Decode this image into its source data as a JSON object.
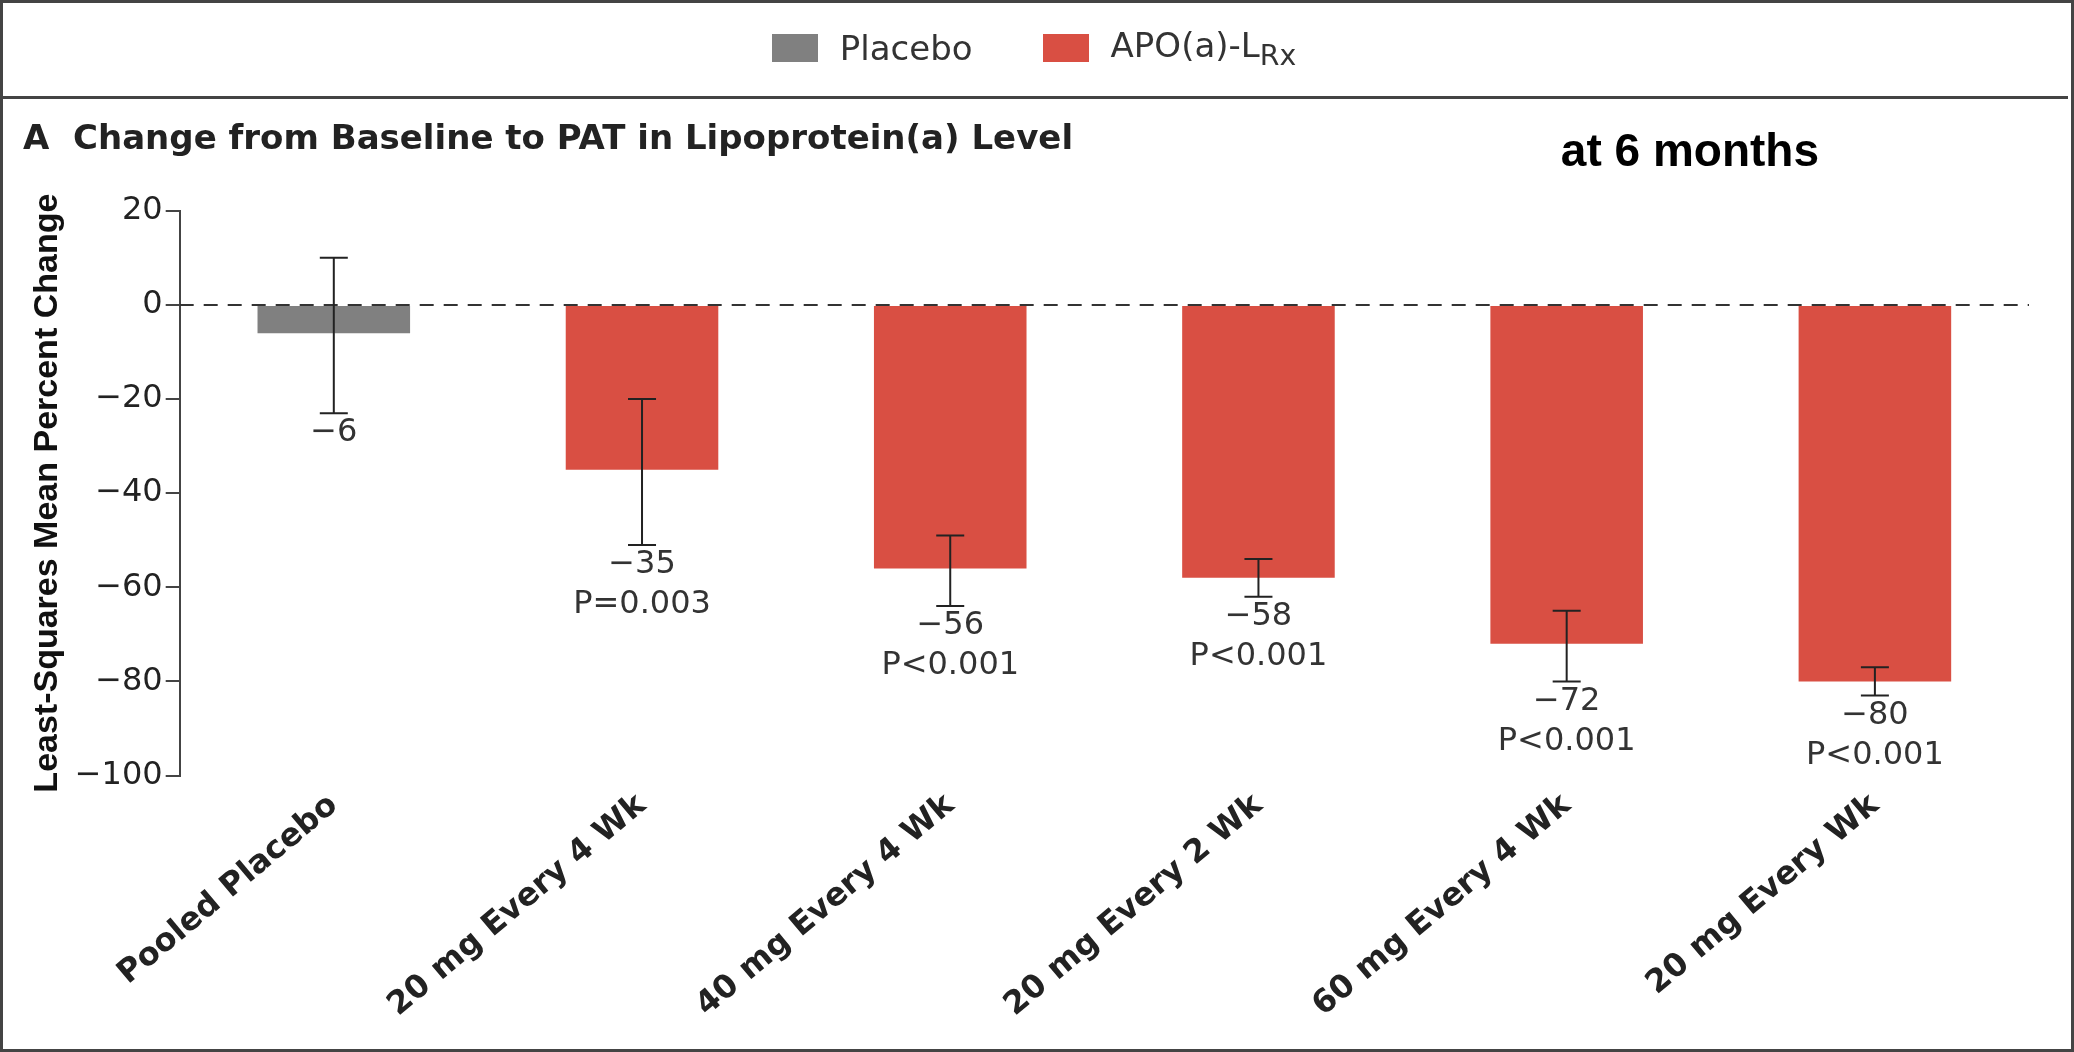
{
  "chart_data": {
    "type": "bar",
    "title": "A  Change from Baseline to PAT in Lipoprotein(a) Level",
    "ylabel": "Least-Squares Mean Percent Change",
    "categories": [
      "Pooled Placebo",
      "20 mg Every 4 Wk",
      "40 mg Every 4 Wk",
      "20 mg Every 2 Wk",
      "60 mg Every 4 Wk",
      "20 mg Every Wk"
    ],
    "series": [
      {
        "name": "Placebo",
        "color": "#808080",
        "values": [
          -6,
          null,
          null,
          null,
          null,
          null
        ],
        "errors": [
          [
            -23,
            10
          ],
          null,
          null,
          null,
          null,
          null
        ],
        "value_labels": [
          "−6",
          null,
          null,
          null,
          null,
          null
        ]
      },
      {
        "name": "APO(a)-L$_{Rx}$",
        "color": "#d94f43",
        "values": [
          null,
          -35,
          -56,
          -58,
          -72,
          -80
        ],
        "errors": [
          null,
          [
            -51,
            -20
          ],
          [
            -64,
            -49
          ],
          [
            -62,
            -54
          ],
          [
            -80,
            -65
          ],
          [
            -83,
            -77
          ]
        ],
        "value_labels": [
          null,
          "−35\nP=0.003",
          "−56\nP<0.001",
          "−58\nP<0.001",
          "−72\nP<0.001",
          "−80\nP<0.001"
        ]
      }
    ],
    "ylim": [
      -100,
      20
    ],
    "yticks": [
      -100,
      -80,
      -60,
      -40,
      -20,
      0,
      20
    ],
    "grid": false,
    "legend": "top",
    "ref_lines": [
      {
        "axis": "y",
        "value": 0,
        "line_style": "dashed",
        "color": "#333333"
      }
    ],
    "annotations": [
      "at 6 months"
    ]
  }
}
